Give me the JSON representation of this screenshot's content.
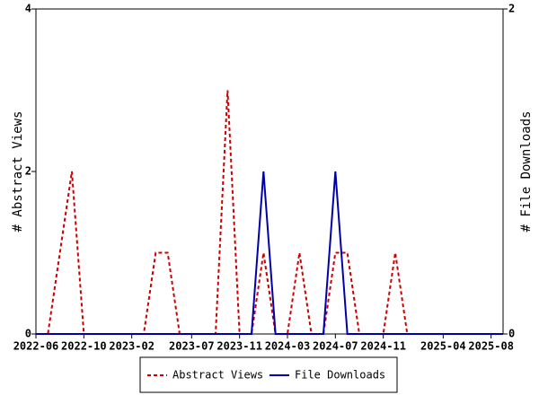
{
  "chart_data": {
    "type": "line",
    "x_categories_note_free": null,
    "categories": [
      "2022-06",
      null,
      null,
      null,
      "2022-10",
      null,
      null,
      null,
      "2023-02",
      null,
      null,
      null,
      null,
      "2023-07",
      null,
      null,
      null,
      "2023-11",
      null,
      null,
      null,
      "2024-03",
      null,
      null,
      null,
      "2024-07",
      null,
      null,
      null,
      "2024-11",
      null,
      null,
      null,
      null,
      "2025-04",
      null,
      null,
      null,
      "2025-08",
      null
    ],
    "ylabel": "# Abstract Views",
    "y2label": "# File Downloads",
    "ylim": [
      0,
      4
    ],
    "yticks": [
      0,
      2,
      4
    ],
    "y2lim": [
      0,
      2
    ],
    "y2ticks": [
      0,
      2
    ],
    "legend": "bottom",
    "series": [
      {
        "name": "Abstract Views",
        "color": "#cc0000",
        "dash": true,
        "axis": "y",
        "values": [
          0,
          0,
          1,
          2,
          0,
          0,
          0,
          0,
          0,
          0,
          1,
          1,
          0,
          0,
          0,
          0,
          3,
          0,
          0,
          1,
          0,
          0,
          1,
          0,
          0,
          1,
          1,
          0,
          0,
          0,
          1,
          0,
          0,
          0,
          0,
          0,
          0,
          0,
          0,
          0
        ]
      },
      {
        "name": "File Downloads",
        "color": "#0000aa",
        "dash": false,
        "axis": "y2",
        "values": [
          0,
          0,
          0,
          0,
          0,
          0,
          0,
          0,
          0,
          0,
          0,
          0,
          0,
          0,
          0,
          0,
          0,
          0,
          0,
          1,
          0,
          0,
          0,
          0,
          0,
          1,
          0,
          0,
          0,
          0,
          0,
          0,
          0,
          0,
          0,
          0,
          0,
          0,
          0,
          0
        ]
      }
    ]
  }
}
